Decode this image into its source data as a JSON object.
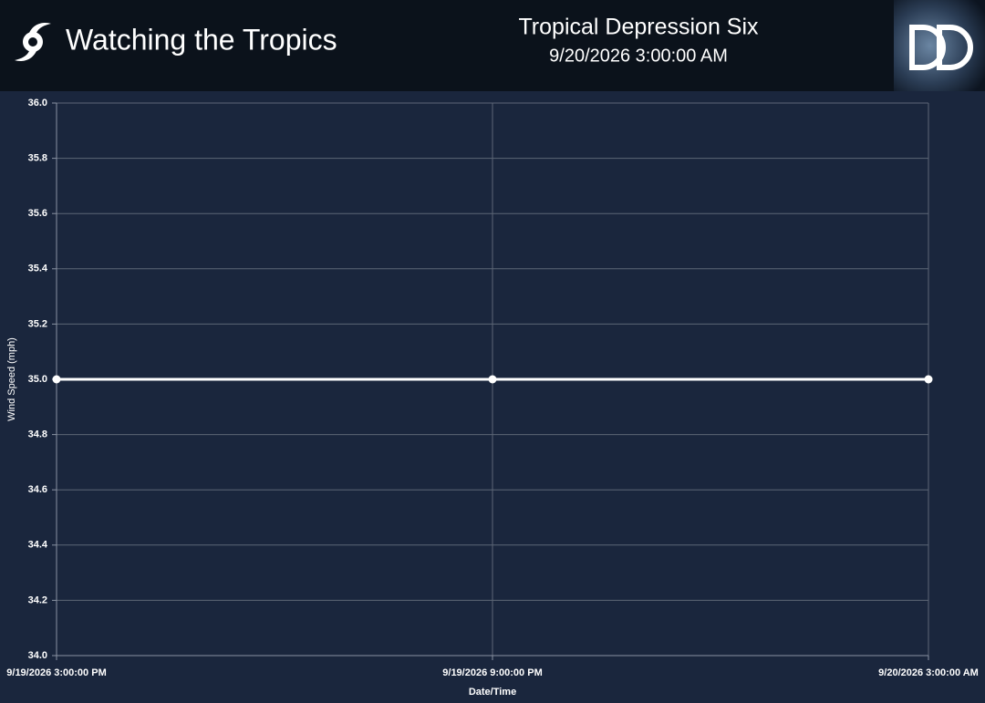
{
  "header": {
    "title": "Watching the Tropics",
    "storm": "Tropical Depression Six",
    "datetime": "9/20/2026 3:00:00 AM"
  },
  "chart_data": {
    "type": "line",
    "categories": [
      "9/19/2026 3:00:00 PM",
      "9/19/2026 9:00:00 PM",
      "9/20/2026 3:00:00 AM"
    ],
    "values": [
      35,
      35,
      35
    ],
    "color": "#ffffff",
    "xlabel": "Date/Time",
    "ylabel": "Wind Speed (mph)",
    "ylim": [
      34,
      36
    ],
    "yticks": [
      {
        "value": 34,
        "label": "34.0"
      },
      34.2,
      34.4,
      34.6,
      34.8,
      {
        "value": 35,
        "label": "35.0"
      },
      35.2,
      35.4,
      35.6,
      35.8,
      {
        "value": 36,
        "label": "36.0"
      }
    ],
    "grid": true
  }
}
